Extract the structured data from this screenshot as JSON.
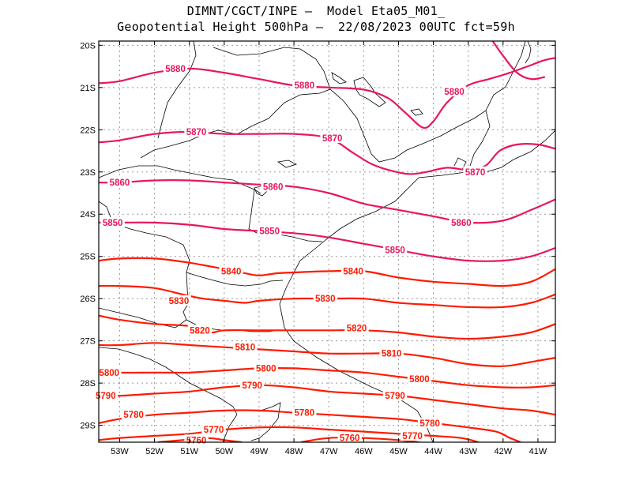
{
  "title": {
    "line1": "DIMNT/CGCT/INPE –  Model Eta05_M01_",
    "line2": "Geopotential Height 500hPa –  22/08/2023 00UTC fct=59h"
  },
  "axes": {
    "lon_labels": [
      "53W",
      "52W",
      "51W",
      "50W",
      "49W",
      "48W",
      "47W",
      "46W",
      "45W",
      "44W",
      "43W",
      "42W",
      "41W"
    ],
    "lat_labels": [
      "20S",
      "21S",
      "22S",
      "23S",
      "24S",
      "25S",
      "26S",
      "27S",
      "28S",
      "29S"
    ]
  },
  "colors": {
    "high_contour": "#e8175d",
    "low_contour": "#ff1a00",
    "coast": "#000000",
    "grid": "#9a9a9a"
  },
  "chart_data": {
    "type": "contour",
    "variable": "Geopotential Height 500hPa",
    "lon_range": [
      -53.6,
      -40.5
    ],
    "lat_range": [
      -29.4,
      -19.9
    ],
    "grid": true,
    "contours": [
      {
        "value": 5880,
        "label": "5880",
        "color": "#e8175d",
        "points": [
          [
            -53.6,
            -20.9
          ],
          [
            -53,
            -20.85
          ],
          [
            -52,
            -20.65
          ],
          [
            -51,
            -20.55
          ],
          [
            -50,
            -20.65
          ],
          [
            -49,
            -20.8
          ],
          [
            -48,
            -20.95
          ],
          [
            -47,
            -21.0
          ],
          [
            -46,
            -21.05
          ],
          [
            -45.3,
            -21.25
          ],
          [
            -44.8,
            -21.6
          ],
          [
            -44.3,
            -21.95
          ],
          [
            -44.0,
            -21.8
          ],
          [
            -43.6,
            -21.35
          ],
          [
            -43.0,
            -20.95
          ],
          [
            -42.4,
            -20.8
          ],
          [
            -41.8,
            -20.65
          ],
          [
            -41.3,
            -20.5
          ],
          [
            -40.8,
            -20.35
          ],
          [
            -40.5,
            -20.3
          ]
        ],
        "labels_at": [
          [
            -51.4,
            -20.55
          ],
          [
            -47.7,
            -20.95
          ],
          [
            -43.4,
            -21.1
          ]
        ]
      },
      {
        "value": 5880,
        "label": "",
        "color": "#e8175d",
        "points": [
          [
            -42.3,
            -19.9
          ],
          [
            -42.0,
            -20.25
          ],
          [
            -41.6,
            -20.65
          ],
          [
            -41.2,
            -20.8
          ],
          [
            -40.8,
            -20.75
          ]
        ],
        "labels_at": []
      },
      {
        "value": 5870,
        "label": "5870",
        "color": "#e8175d",
        "points": [
          [
            -53.6,
            -22.3
          ],
          [
            -53,
            -22.25
          ],
          [
            -52,
            -22.1
          ],
          [
            -51,
            -22.05
          ],
          [
            -50,
            -22.1
          ],
          [
            -49,
            -22.1
          ],
          [
            -48,
            -22.1
          ],
          [
            -47,
            -22.2
          ],
          [
            -46.3,
            -22.55
          ],
          [
            -45.8,
            -22.8
          ],
          [
            -45.3,
            -22.95
          ],
          [
            -44.7,
            -23.05
          ],
          [
            -44.2,
            -23.0
          ],
          [
            -43.6,
            -22.9
          ],
          [
            -43.0,
            -22.95
          ],
          [
            -42.5,
            -22.85
          ],
          [
            -42.1,
            -22.5
          ],
          [
            -41.6,
            -22.35
          ],
          [
            -41.0,
            -22.35
          ],
          [
            -40.5,
            -22.45
          ]
        ],
        "labels_at": [
          [
            -50.8,
            -22.05
          ],
          [
            -46.9,
            -22.2
          ],
          [
            -42.8,
            -23.0
          ]
        ]
      },
      {
        "value": 5860,
        "label": "5860",
        "color": "#e8175d",
        "points": [
          [
            -53.6,
            -23.25
          ],
          [
            -53,
            -23.25
          ],
          [
            -52,
            -23.2
          ],
          [
            -51,
            -23.2
          ],
          [
            -50,
            -23.25
          ],
          [
            -49,
            -23.3
          ],
          [
            -48,
            -23.35
          ],
          [
            -47,
            -23.5
          ],
          [
            -46,
            -23.75
          ],
          [
            -45,
            -23.9
          ],
          [
            -44,
            -24.05
          ],
          [
            -43,
            -24.2
          ],
          [
            -42,
            -24.15
          ],
          [
            -41.2,
            -23.9
          ],
          [
            -40.5,
            -23.65
          ]
        ],
        "labels_at": [
          [
            -53.0,
            -23.25
          ],
          [
            -48.6,
            -23.35
          ],
          [
            -43.2,
            -24.2
          ]
        ]
      },
      {
        "value": 5850,
        "label": "5850",
        "color": "#e8175d",
        "points": [
          [
            -53.6,
            -24.2
          ],
          [
            -53,
            -24.2
          ],
          [
            -52,
            -24.2
          ],
          [
            -51,
            -24.25
          ],
          [
            -50,
            -24.35
          ],
          [
            -49,
            -24.4
          ],
          [
            -48,
            -24.45
          ],
          [
            -47,
            -24.55
          ],
          [
            -46,
            -24.7
          ],
          [
            -45,
            -24.85
          ],
          [
            -44,
            -25.0
          ],
          [
            -43,
            -25.1
          ],
          [
            -42,
            -25.1
          ],
          [
            -41.2,
            -25.0
          ],
          [
            -40.5,
            -24.8
          ]
        ],
        "labels_at": [
          [
            -53.2,
            -24.2
          ],
          [
            -48.7,
            -24.4
          ],
          [
            -45.1,
            -24.85
          ]
        ]
      },
      {
        "value": 5840,
        "label": "5840",
        "color": "#ff1a00",
        "points": [
          [
            -53.6,
            -25.1
          ],
          [
            -53,
            -25.05
          ],
          [
            -52,
            -25.05
          ],
          [
            -51,
            -25.15
          ],
          [
            -50,
            -25.3
          ],
          [
            -49.4,
            -25.4
          ],
          [
            -49.0,
            -25.45
          ],
          [
            -48.5,
            -25.4
          ],
          [
            -48,
            -25.38
          ],
          [
            -47,
            -25.35
          ],
          [
            -46,
            -25.35
          ],
          [
            -45,
            -25.5
          ],
          [
            -44,
            -25.6
          ],
          [
            -43,
            -25.65
          ],
          [
            -42,
            -25.7
          ],
          [
            -41.2,
            -25.6
          ],
          [
            -40.5,
            -25.3
          ]
        ],
        "labels_at": [
          [
            -49.8,
            -25.35
          ],
          [
            -46.3,
            -25.35
          ]
        ]
      },
      {
        "value": 5830,
        "label": "5830",
        "color": "#ff1a00",
        "points": [
          [
            -53.6,
            -25.7
          ],
          [
            -53,
            -25.7
          ],
          [
            -52,
            -25.75
          ],
          [
            -51.2,
            -25.9
          ],
          [
            -50.6,
            -26.0
          ],
          [
            -50,
            -26.05
          ],
          [
            -49.4,
            -26.1
          ],
          [
            -49,
            -26.05
          ],
          [
            -48,
            -26.0
          ],
          [
            -47,
            -26.0
          ],
          [
            -46,
            -26.0
          ],
          [
            -45,
            -26.1
          ],
          [
            -44,
            -26.15
          ],
          [
            -43,
            -26.2
          ],
          [
            -42,
            -26.2
          ],
          [
            -41.2,
            -26.1
          ],
          [
            -40.5,
            -25.9
          ]
        ],
        "labels_at": [
          [
            -51.3,
            -26.05
          ],
          [
            -47.1,
            -26.0
          ]
        ]
      },
      {
        "value": 5820,
        "label": "5820",
        "color": "#ff1a00",
        "points": [
          [
            -53.6,
            -26.4
          ],
          [
            -53,
            -26.5
          ],
          [
            -52,
            -26.6
          ],
          [
            -51,
            -26.65
          ],
          [
            -50.4,
            -26.8
          ],
          [
            -50.0,
            -26.75
          ],
          [
            -49,
            -26.75
          ],
          [
            -48,
            -26.75
          ],
          [
            -47,
            -26.75
          ],
          [
            -46,
            -26.75
          ],
          [
            -45,
            -26.8
          ],
          [
            -44,
            -26.9
          ],
          [
            -43,
            -26.95
          ],
          [
            -42,
            -26.9
          ],
          [
            -41.2,
            -26.8
          ],
          [
            -40.5,
            -26.6
          ]
        ],
        "labels_at": [
          [
            -50.7,
            -26.75
          ],
          [
            -46.2,
            -26.7
          ]
        ]
      },
      {
        "value": 5810,
        "label": "5810",
        "color": "#ff1a00",
        "points": [
          [
            -53.6,
            -27.1
          ],
          [
            -53,
            -27.1
          ],
          [
            -52,
            -27.05
          ],
          [
            -51,
            -27.1
          ],
          [
            -50,
            -27.15
          ],
          [
            -49,
            -27.2
          ],
          [
            -48,
            -27.25
          ],
          [
            -47,
            -27.3
          ],
          [
            -46,
            -27.3
          ],
          [
            -45,
            -27.3
          ],
          [
            -44,
            -27.4
          ],
          [
            -43,
            -27.55
          ],
          [
            -42,
            -27.6
          ],
          [
            -41.2,
            -27.5
          ],
          [
            -40.5,
            -27.4
          ]
        ],
        "labels_at": [
          [
            -49.4,
            -27.15
          ],
          [
            -45.2,
            -27.3
          ]
        ]
      },
      {
        "value": 5800,
        "label": "5800",
        "color": "#ff1a00",
        "points": [
          [
            -53.6,
            -27.7
          ],
          [
            -53,
            -27.75
          ],
          [
            -52,
            -27.75
          ],
          [
            -51,
            -27.75
          ],
          [
            -50,
            -27.7
          ],
          [
            -49,
            -27.65
          ],
          [
            -48,
            -27.65
          ],
          [
            -47,
            -27.7
          ],
          [
            -46,
            -27.75
          ],
          [
            -45,
            -27.85
          ],
          [
            -44,
            -27.95
          ],
          [
            -43,
            -28.05
          ],
          [
            -42,
            -28.1
          ],
          [
            -41.2,
            -28.1
          ],
          [
            -40.5,
            -28.05
          ]
        ],
        "labels_at": [
          [
            -53.3,
            -27.75
          ],
          [
            -48.8,
            -27.65
          ],
          [
            -44.4,
            -27.9
          ]
        ]
      },
      {
        "value": 5790,
        "label": "5790",
        "color": "#ff1a00",
        "points": [
          [
            -53.6,
            -28.3
          ],
          [
            -53,
            -28.3
          ],
          [
            -52,
            -28.25
          ],
          [
            -51,
            -28.2
          ],
          [
            -50,
            -28.1
          ],
          [
            -49,
            -28.05
          ],
          [
            -48,
            -28.1
          ],
          [
            -47,
            -28.2
          ],
          [
            -46,
            -28.25
          ],
          [
            -45,
            -28.3
          ],
          [
            -44,
            -28.4
          ],
          [
            -43,
            -28.5
          ],
          [
            -42,
            -28.6
          ],
          [
            -41.2,
            -28.65
          ],
          [
            -40.5,
            -28.75
          ]
        ],
        "labels_at": [
          [
            -53.4,
            -28.3
          ],
          [
            -49.2,
            -28.05
          ],
          [
            -45.1,
            -28.3
          ]
        ]
      },
      {
        "value": 5780,
        "label": "5780",
        "color": "#ff1a00",
        "points": [
          [
            -53.6,
            -28.95
          ],
          [
            -53,
            -28.85
          ],
          [
            -52,
            -28.75
          ],
          [
            -51,
            -28.7
          ],
          [
            -50,
            -28.65
          ],
          [
            -49,
            -28.65
          ],
          [
            -48,
            -28.7
          ],
          [
            -47,
            -28.75
          ],
          [
            -46,
            -28.8
          ],
          [
            -45,
            -28.85
          ],
          [
            -44,
            -28.95
          ],
          [
            -43,
            -29.05
          ],
          [
            -42.2,
            -29.15
          ],
          [
            -41.8,
            -29.3
          ],
          [
            -41.5,
            -29.4
          ]
        ],
        "labels_at": [
          [
            -52.6,
            -28.75
          ],
          [
            -47.7,
            -28.7
          ],
          [
            -44.1,
            -28.95
          ]
        ]
      },
      {
        "value": 5770,
        "label": "5770",
        "color": "#ff1a00",
        "points": [
          [
            -53.6,
            -29.35
          ],
          [
            -53,
            -29.3
          ],
          [
            -52,
            -29.25
          ],
          [
            -51,
            -29.2
          ],
          [
            -50,
            -29.1
          ],
          [
            -49,
            -29.05
          ],
          [
            -48,
            -29.05
          ],
          [
            -47,
            -29.1
          ],
          [
            -46,
            -29.15
          ],
          [
            -45,
            -29.2
          ],
          [
            -44,
            -29.25
          ],
          [
            -43.2,
            -29.3
          ],
          [
            -42.7,
            -29.4
          ]
        ],
        "labels_at": [
          [
            -50.3,
            -29.1
          ],
          [
            -44.6,
            -29.25
          ]
        ]
      },
      {
        "value": 5760,
        "label": "5760",
        "color": "#ff1a00",
        "points": [
          [
            -51.9,
            -29.4
          ],
          [
            -51.2,
            -29.35
          ],
          [
            -50.5,
            -29.3
          ],
          [
            -50,
            -29.35
          ],
          [
            -49.5,
            -29.4
          ]
        ],
        "labels_at": [
          [
            -50.8,
            -29.35
          ]
        ]
      },
      {
        "value": 5760,
        "label": "",
        "color": "#ff1a00",
        "points": [
          [
            -47.8,
            -29.4
          ],
          [
            -47,
            -29.3
          ],
          [
            -46,
            -29.3
          ],
          [
            -45,
            -29.35
          ],
          [
            -44.4,
            -29.4
          ]
        ],
        "labels_at": [
          [
            -46.4,
            -29.3
          ]
        ]
      }
    ]
  }
}
